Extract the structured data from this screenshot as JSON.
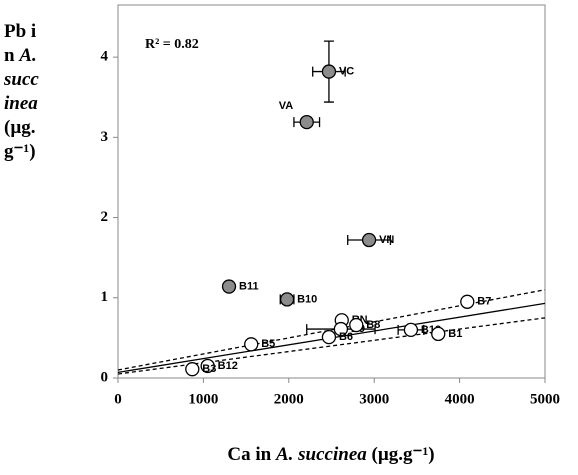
{
  "chart_data": {
    "type": "scatter",
    "annotation": "R² = 0.82",
    "xlabel": [
      "Ca in ",
      "A. succinea",
      " (µg.g⁻¹)"
    ],
    "ylabel": [
      "Pb in ",
      "A. succinea",
      " (µg.g⁻¹)"
    ],
    "xlim": [
      0,
      5000
    ],
    "xticks": [
      0,
      1000,
      2000,
      3000,
      4000,
      5000
    ],
    "ylim": [
      0,
      4.65
    ],
    "yticks": [
      0,
      1,
      2,
      3,
      4
    ],
    "series": [
      {
        "color": "#8c8c8c",
        "labels": [
          "VC",
          "VA",
          "VN",
          "B11",
          "B10"
        ],
        "x": [
          2470,
          2210,
          2940,
          1300,
          1980
        ],
        "values": [
          3.82,
          3.19,
          1.72,
          1.14,
          0.98
        ],
        "xerr": [
          190,
          150,
          250,
          null,
          80
        ],
        "yerr": [
          0.38,
          null,
          null,
          null,
          null
        ]
      },
      {
        "color": "#ffffff",
        "labels": [
          "B7",
          "RN",
          "B9",
          "B8",
          "B6",
          "B13",
          "B1",
          "B5",
          "B12",
          "B3"
        ],
        "x": [
          4090,
          2620,
          2610,
          2790,
          2470,
          3430,
          3750,
          1560,
          1050,
          870
        ],
        "values": [
          0.95,
          0.72,
          0.61,
          0.66,
          0.51,
          0.6,
          0.55,
          0.42,
          0.15,
          0.11
        ],
        "xerr": [
          null,
          null,
          400,
          null,
          null,
          150,
          null,
          null,
          null,
          null
        ],
        "yerr": [
          null,
          null,
          null,
          null,
          null,
          null,
          null,
          null,
          null,
          null
        ]
      }
    ],
    "fit_lines": [
      {
        "style": "solid",
        "x": [
          0,
          5000
        ],
        "values": [
          0.07,
          0.93
        ]
      },
      {
        "style": "dashed",
        "x": [
          0,
          5000
        ],
        "values": [
          0.1,
          1.1
        ]
      },
      {
        "style": "dashed",
        "x": [
          0,
          5000
        ],
        "values": [
          0.05,
          0.75
        ]
      }
    ]
  }
}
